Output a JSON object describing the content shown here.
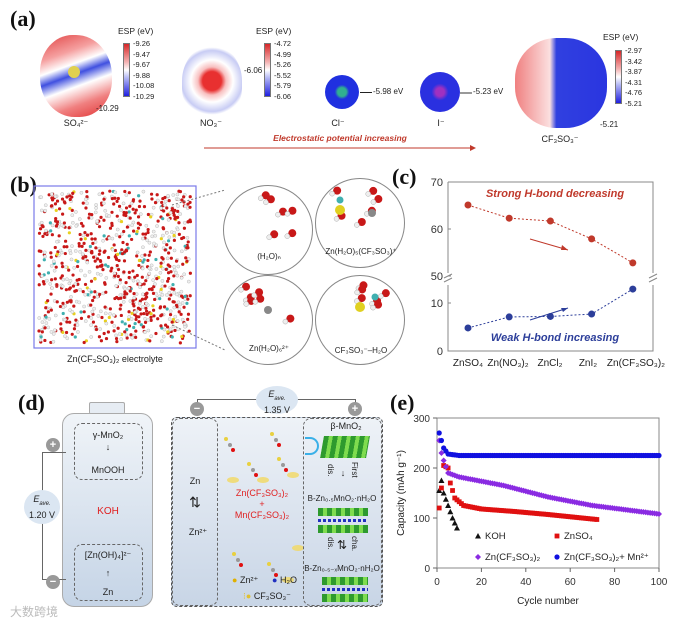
{
  "panel_a": {
    "label": "(a)",
    "esp_title": "ESP (eV)",
    "so4": {
      "name": "SO₄²⁻",
      "ticks": [
        "-9.26",
        "-9.47",
        "-9.67",
        "-9.88",
        "-10.08",
        "-10.29"
      ],
      "callout": "-10.29"
    },
    "no3": {
      "name": "NO₃⁻",
      "ticks": [
        "-4.72",
        "-4.99",
        "-5.26",
        "-5.52",
        "-5.79",
        "-6.06"
      ],
      "callout": "-6.06"
    },
    "cl": {
      "name": "Cl⁻",
      "callout": "-5.98 eV"
    },
    "i": {
      "name": "I⁻",
      "callout": "-5.23 eV"
    },
    "cf3so3": {
      "name": "CF₃SO₃⁻",
      "ticks": [
        "-2.97",
        "-3.42",
        "-3.87",
        "-4.31",
        "-4.76",
        "-5.21"
      ],
      "callout": "-5.21"
    },
    "trend": "Electrostatic potential increasing",
    "colors": {
      "positive": "#d62728",
      "negative": "#2020e0",
      "trend": "#c0392b"
    }
  },
  "panel_b": {
    "label": "(b)",
    "box_caption": "Zn(CF₃SO₃)₂ electrolyte",
    "clusters": [
      "(H₂O)ₙ",
      "Zn(H₂O)₅(CF₃SO₃)⁺",
      "Zn(H₂O)₆²⁺",
      "CF₃SO₃⁻–H₂O"
    ]
  },
  "panel_d": {
    "label": "(d)",
    "left": {
      "cathode_top": "γ-MnO₂",
      "cathode_bottom": "MnOOH",
      "electrolyte": "KOH",
      "anode_top": "[Zn(OH)₄]²⁻",
      "anode_bottom": "Zn",
      "eave": "E",
      "eave_sub": "ave.",
      "voltage": "1.20 V",
      "plus": "+",
      "minus": "−"
    },
    "right": {
      "eave": "E",
      "eave_sub": "ave.",
      "voltage": "1.35 V",
      "plus": "+",
      "minus": "−",
      "zn": "Zn",
      "zn2": "Zn²⁺",
      "salt1": "Zn(CF₃SO₃)₂",
      "plus_sign": "+",
      "salt2": "Mn(CF₃SO₃)₂",
      "legend_zn": "Zn²⁺",
      "legend_h2o": "H₂O",
      "legend_cf3": "CF₃SO₃⁻",
      "beta": "β-MnO₂",
      "first": "First",
      "dis": "dis.",
      "phase1": "B-Zn₀.₅MnO₂·nH₂O",
      "cha": "cha.",
      "dis2": "dis.",
      "phase2": "B-Zn₀.₅₋ₓMnO₂·nH₂O"
    }
  },
  "watermark": "大数跨境",
  "chart_data": [
    {
      "panel": "(c)",
      "type": "line",
      "categories": [
        "ZnSO₄",
        "Zn(NO₃)₂",
        "ZnCl₂",
        "ZnI₂",
        "Zn(CF₃SO₃)₂"
      ],
      "series": [
        {
          "name": "Strong H-bond decreasing",
          "color": "#c0392b",
          "values": [
            65.1,
            62.3,
            61.7,
            57.9,
            52.8
          ]
        },
        {
          "name": "Weak H-bond increasing",
          "color": "#2c3e9a",
          "values": [
            4.8,
            7.1,
            7.2,
            7.7,
            12.9
          ]
        }
      ],
      "yticks": [
        "0",
        "10",
        "50",
        "60",
        "70"
      ],
      "ylim": [
        0,
        70
      ],
      "axis_break": [
        15,
        50
      ]
    },
    {
      "panel": "(e)",
      "type": "scatter",
      "xlabel": "Cycle number",
      "ylabel": "Capacity (mAh g⁻¹)",
      "xlim": [
        0,
        100
      ],
      "ylim": [
        0,
        300
      ],
      "xticks": [
        "0",
        "20",
        "40",
        "60",
        "80",
        "100"
      ],
      "yticks": [
        "0",
        "100",
        "200",
        "300"
      ],
      "series": [
        {
          "name": "KOH",
          "marker": "triangle",
          "color": "#111111",
          "points": [
            [
              1,
              155
            ],
            [
              2,
              175
            ],
            [
              3,
              150
            ],
            [
              5,
              125
            ],
            [
              7,
              100
            ],
            [
              9,
              80
            ]
          ]
        },
        {
          "name": "ZnSO₄",
          "marker": "square",
          "color": "#e01010",
          "points": [
            [
              1,
              120
            ],
            [
              2,
              160
            ],
            [
              3,
              205
            ],
            [
              5,
              200
            ],
            [
              6,
              170
            ],
            [
              8,
              140
            ],
            [
              12,
              125
            ],
            [
              20,
              118
            ],
            [
              35,
              113
            ],
            [
              50,
              107
            ],
            [
              72,
              97
            ]
          ]
        },
        {
          "name": "Zn(CF₃SO₃)₂",
          "marker": "diamond",
          "color": "#8a2be2",
          "points": [
            [
              1,
              255
            ],
            [
              2,
              230
            ],
            [
              3,
              215
            ],
            [
              5,
              190
            ],
            [
              10,
              182
            ],
            [
              30,
              165
            ],
            [
              50,
              142
            ],
            [
              70,
              125
            ],
            [
              100,
              108
            ]
          ]
        },
        {
          "name": "Zn(CF₃SO₃)₂+ Mn²⁺",
          "marker": "circle",
          "color": "#1010e0",
          "points": [
            [
              1,
              270
            ],
            [
              2,
              255
            ],
            [
              3,
              240
            ],
            [
              5,
              228
            ],
            [
              10,
              225
            ],
            [
              100,
              225
            ]
          ]
        }
      ]
    }
  ]
}
